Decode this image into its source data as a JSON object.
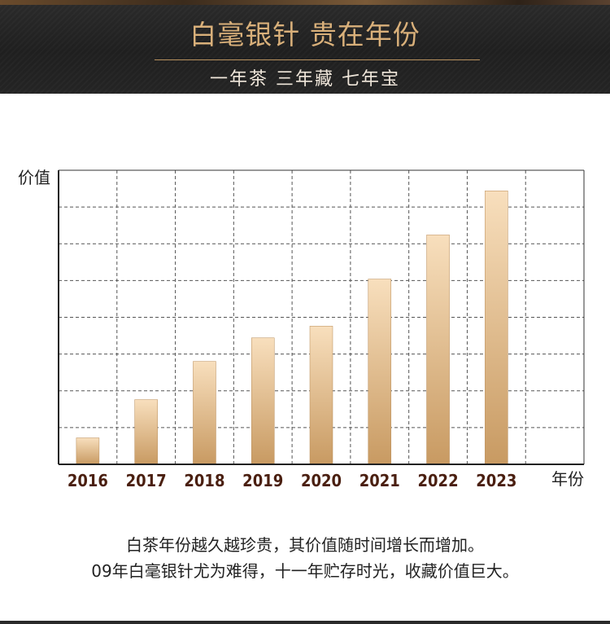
{
  "header": {
    "title": "白毫银针 贵在年份",
    "subtitle": "一年茶  三年藏  七年宝"
  },
  "chart_data": {
    "type": "bar",
    "categories": [
      "2016",
      "2017",
      "2018",
      "2019",
      "2020",
      "2021",
      "2022",
      "2023"
    ],
    "values": [
      0.9,
      2.2,
      3.5,
      4.3,
      4.7,
      6.3,
      7.8,
      9.3
    ],
    "ylabel": "价值",
    "xlabel": "年份",
    "ylim": [
      0,
      10
    ],
    "grid": true,
    "bar_color_top": "#f8dfbd",
    "bar_color_bottom": "#c89a62"
  },
  "caption": {
    "line1": "白茶年份越久越珍贵，其价值随时间增长而增加。",
    "line2": "09年白毫银针尤为难得，十一年贮存时光，收藏价值巨大。"
  },
  "colors": {
    "header_bg": "#222222",
    "title": "#d9b07a",
    "tick_label": "#4a1f10"
  }
}
